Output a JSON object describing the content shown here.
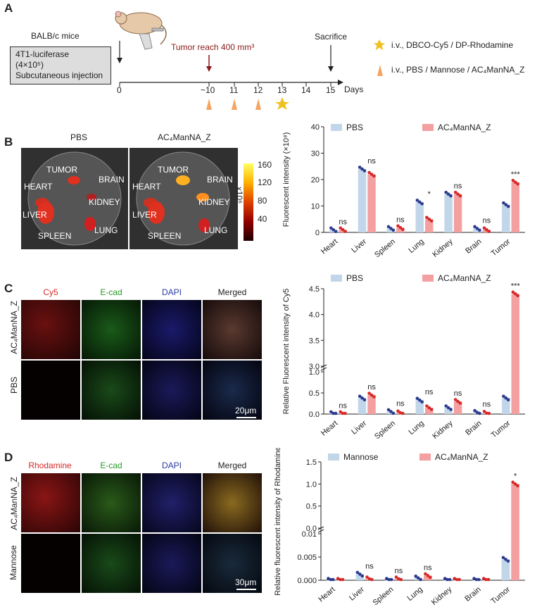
{
  "panels": {
    "a": "A",
    "b": "B",
    "c": "C",
    "d": "D"
  },
  "panelA": {
    "mice": "BALB/c mice",
    "box": [
      "4T1-luciferase",
      "(4×10⁵)",
      "Subcutaneous injection"
    ],
    "tumor": "Tumor reach 400 mm³",
    "sacrifice": "Sacrifice",
    "days_label": "Days",
    "days": [
      "0",
      "~10",
      "11",
      "12",
      "13",
      "14",
      "15"
    ],
    "legend_star": "i.v., DBCO-Cy5 / DP-Rhodamine",
    "legend_arrow": "i.v., PBS / Mannose / AC₄ManNA_Z",
    "colors": {
      "tumor": "#8b1a1a",
      "arrow": "#f4a460",
      "star": "#f0c020"
    }
  },
  "panelB": {
    "img_labels": [
      "PBS",
      "AC₄ManNA_Z"
    ],
    "organs_left": [
      "TUMOR",
      "HEART",
      "BRAIN",
      "KIDNEY",
      "LIVER",
      "LUNG",
      "SPLEEN"
    ],
    "colorbar_ticks": [
      "160",
      "120",
      "80",
      "40"
    ],
    "colorbar_unit": "x10⁶"
  },
  "panelC": {
    "channels": [
      "Cy5",
      "E-cad",
      "DAPI",
      "Merged"
    ],
    "row_labels": [
      "AC₄ManNA_Z",
      "PBS"
    ],
    "scale": "20μm"
  },
  "panelD": {
    "channels": [
      "Rhodamine",
      "E-cad",
      "DAPI",
      "Merged"
    ],
    "row_labels": [
      "AC₄ManNA_Z",
      "Mannose"
    ],
    "scale": "30μm"
  },
  "chart_data": [
    {
      "type": "bar",
      "title": "",
      "ylabel": "Fluorescent intensity (×10⁸)",
      "categories": [
        "Heart",
        "Liver",
        "Spleen",
        "Lung",
        "Kidney",
        "Brain",
        "Tumor"
      ],
      "ylim": [
        0,
        40
      ],
      "yticks": [
        "0",
        "10",
        "20",
        "30",
        "40"
      ],
      "series": [
        {
          "name": "PBS",
          "color": "#c2d6ea",
          "dot": "#2b3a8f",
          "values": [
            1,
            24,
            1.5,
            11.5,
            14.5,
            1.5,
            10.5
          ]
        },
        {
          "name": "AC₄ManNA_Z",
          "color": "#f4a0a0",
          "dot": "#d62828",
          "values": [
            1,
            22,
            1.8,
            5,
            14.5,
            1,
            19
          ]
        }
      ],
      "annotations": [
        "ns",
        "ns",
        "ns",
        "*",
        "ns",
        "ns",
        "***"
      ]
    },
    {
      "type": "bar",
      "ylabel": "Relative Fluorescent intensity of Cy5",
      "categories": [
        "Heart",
        "Liver",
        "Spleen",
        "Lung",
        "Kidney",
        "Brain",
        "Tumor"
      ],
      "axis_break": true,
      "lower_ylim": [
        0,
        1.0
      ],
      "upper_ylim": [
        3.0,
        4.5
      ],
      "yticks_lower": [
        "0.0",
        "0.5",
        "1.0"
      ],
      "yticks_upper": [
        "3.0",
        "3.5",
        "4.0",
        "4.5"
      ],
      "series": [
        {
          "name": "PBS",
          "color": "#c2d6ea",
          "dot": "#2b3a8f",
          "values": [
            0.01,
            0.38,
            0.06,
            0.33,
            0.15,
            0.04,
            0.38
          ]
        },
        {
          "name": "AC₄ManNA_Z",
          "color": "#f4a0a0",
          "dot": "#d62828",
          "values": [
            0.01,
            0.45,
            0.03,
            0.15,
            0.3,
            0.02,
            4.4
          ]
        }
      ],
      "annotations": [
        "ns",
        "ns",
        "ns",
        "ns",
        "ns",
        "ns",
        "***"
      ]
    },
    {
      "type": "bar",
      "ylabel": "Relative fluorescent intensity of Rhodamine",
      "categories": [
        "Heart",
        "Liver",
        "Spleen",
        "Lung",
        "Kidney",
        "Brain",
        "Tumor"
      ],
      "axis_break": true,
      "lower_ylim": [
        0,
        0.01
      ],
      "upper_ylim": [
        0.0,
        1.5
      ],
      "yticks_lower": [
        "0.000",
        "0.005",
        "0.01"
      ],
      "yticks_upper": [
        "0.0",
        "0.5",
        "1.0",
        "1.5"
      ],
      "series": [
        {
          "name": "Mannose",
          "color": "#c2d6ea",
          "dot": "#2b3a8f",
          "values": [
            0,
            0.0013,
            0,
            0.0005,
            0,
            0,
            0.0045
          ]
        },
        {
          "name": "AC₄ManNA_Z",
          "color": "#f4a0a0",
          "dot": "#d62828",
          "values": [
            0,
            0.0003,
            0.0003,
            0.001,
            0,
            0,
            1.0
          ]
        }
      ],
      "annotations": [
        "",
        "ns",
        "ns",
        "ns",
        "",
        "",
        "*"
      ]
    }
  ]
}
